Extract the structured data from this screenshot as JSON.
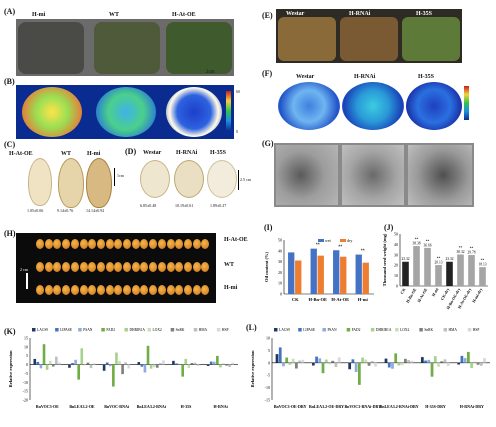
{
  "panels": {
    "A": {
      "label": "(A)",
      "titles": [
        "H-mi",
        "WT",
        "H-At-OE"
      ],
      "scale": "2cm"
    },
    "B": {
      "label": "(B)",
      "titles": [
        "H-mi",
        "WT",
        "H-At-OE"
      ],
      "colorbar_max": "60",
      "colorbar_min": "0"
    },
    "C": {
      "label": "(C)",
      "titles": [
        "H-At-OE",
        "WT",
        "H-mi"
      ],
      "values": [
        "1.05±0.06",
        "9.14±0.76",
        "14.14±0.92"
      ],
      "scale": "1cm"
    },
    "D": {
      "label": "(D)",
      "titles": [
        "Westar",
        "H-RNAi",
        "H-35S"
      ],
      "values": [
        "6.85±0.48",
        "10.19±0.61",
        "1.89±0.27"
      ],
      "scale": "2.5 cm"
    },
    "E": {
      "label": "(E)",
      "titles": [
        "Westar",
        "H-RNAi",
        "H-35S"
      ]
    },
    "F": {
      "label": "(F)",
      "titles": [
        "Westar",
        "H-RNAi",
        "H-35S"
      ]
    },
    "G": {
      "label": "(G)"
    },
    "H": {
      "label": "(H)",
      "rows": [
        "H-At-OE",
        "WT",
        "H-mi"
      ],
      "scale": "2 cm"
    },
    "I": {
      "label": "(I)"
    },
    "J": {
      "label": "(J)"
    },
    "K": {
      "label": "(K)"
    },
    "L": {
      "label": "(L)"
    }
  },
  "chart_data": [
    {
      "id": "I",
      "type": "bar",
      "ylabel": "Oil content (%)",
      "categories": [
        "CK",
        "H-Bn-OE",
        "H-At-OE",
        "H-mi"
      ],
      "series": [
        {
          "name": "wet",
          "color": "#4472c4",
          "values": [
            38.5,
            42.0,
            40.5,
            36.5
          ]
        },
        {
          "name": "dry",
          "color": "#ed7d31",
          "values": [
            31.0,
            35.5,
            34.5,
            29.0
          ]
        }
      ],
      "ylim": [
        0,
        50
      ],
      "yticks": [
        "0",
        "10",
        "20",
        "30",
        "40",
        "50"
      ],
      "annotations": [
        "",
        "**",
        "**",
        "**"
      ]
    },
    {
      "id": "J",
      "type": "bar",
      "ylabel": "Thousand seed weight (mg)",
      "categories": [
        "CK",
        "H-Bn-OE",
        "H-At-OE",
        "H-mi",
        "CK-dry",
        "H-Bn-OE-dry",
        "H-At-OE-dry",
        "H-mi-dry"
      ],
      "values": [
        23.32,
        38.38,
        36.66,
        20.13,
        23.32,
        30.32,
        29.78,
        18.13
      ],
      "value_labels": [
        "23.32",
        "38.38",
        "36.66",
        "20.13",
        "23.32",
        "30.32",
        "29.78",
        "18.13"
      ],
      "colors": [
        "#222222",
        "#a5a5a5",
        "#a5a5a5",
        "#a5a5a5",
        "#222222",
        "#a5a5a5",
        "#a5a5a5",
        "#a5a5a5"
      ],
      "annotations": [
        "",
        "**",
        "**",
        "**",
        "",
        "**",
        "**",
        "**"
      ],
      "ylim": [
        0,
        50
      ],
      "yticks": [
        "0",
        "10",
        "20",
        "30",
        "40",
        "50"
      ]
    },
    {
      "id": "K",
      "type": "bar",
      "ylabel": "Relative expression",
      "legend": [
        "LACS9",
        "LIPASE",
        "PSAN",
        "FAD2",
        "DHRIB1A",
        "LOX2",
        "SnRK",
        "HMA",
        "HSP"
      ],
      "colors": [
        "#203864",
        "#4472c4",
        "#8faadc",
        "#70ad47",
        "#a9d18e",
        "#c5e0b4",
        "#7f7f7f",
        "#bfbfbf",
        "#d9d9d9"
      ],
      "groups": [
        "BnVOC3-OE",
        "BnLEA3.2-OE",
        "BnVOC-RNAi",
        "BnLEA3.2-RNAi",
        "H-35S",
        "H-RNAi"
      ],
      "ylim": [
        -20,
        15
      ],
      "yticks": [
        "15",
        "10",
        "5",
        "0",
        "-5",
        "-10",
        "-15",
        "-20"
      ],
      "values": [
        [
          3.2,
          1.5,
          -2.1,
          11.5,
          -3.0,
          2.2,
          -1.1,
          4.5,
          1.2
        ],
        [
          -1.8,
          0.9,
          2.7,
          -8.5,
          9.2,
          -0.4,
          1.1,
          -2.0,
          0.7
        ],
        [
          -3.5,
          1.2,
          -0.9,
          -12.4,
          6.8,
          2.1,
          -5.4,
          1.3,
          -2.2
        ],
        [
          1.4,
          -1.2,
          -4.5,
          10.6,
          -2.3,
          -1.5,
          -1.8,
          0.8,
          2.4
        ],
        [
          2.1,
          0.6,
          0.4,
          -6.8,
          3.2,
          -1.9,
          0.9,
          1.1,
          -0.7
        ],
        [
          -0.8,
          1.7,
          1.6,
          4.9,
          -1.6,
          0.7,
          -0.6,
          -1.4,
          1.1
        ]
      ]
    },
    {
      "id": "L",
      "type": "bar",
      "ylabel": "Relative expression",
      "legend": [
        "LACS9",
        "LIPASE",
        "PSAN",
        "FAD2",
        "DHRIB1A",
        "LOX2",
        "SnRK",
        "HMA",
        "HSP"
      ],
      "colors": [
        "#203864",
        "#4472c4",
        "#8faadc",
        "#70ad47",
        "#a9d18e",
        "#c5e0b4",
        "#7f7f7f",
        "#bfbfbf",
        "#d9d9d9"
      ],
      "groups": [
        "BnVOC3-OE-DRY",
        "BnLEA3.2-OE-DRY",
        "BnVOC3-RNAi-DRY",
        "BnLEA3.2-RNAi-DRY",
        "H-35S-DRY",
        "H-RNAi-DRY"
      ],
      "ylim": [
        -15,
        10
      ],
      "yticks": [
        "10",
        "5",
        "0",
        "-5",
        "-10",
        "-15"
      ],
      "values": [
        [
          3.5,
          6.2,
          -1.4,
          2.1,
          -0.8,
          1.6,
          -2.3,
          0.9,
          1.2
        ],
        [
          -1.1,
          2.5,
          1.8,
          -4.2,
          1.3,
          -0.6,
          0.8,
          -1.7,
          2.2
        ],
        [
          -2.6,
          1.4,
          -3.7,
          -8.9,
          2.1,
          1.3,
          -1.2,
          0.7,
          -1.5
        ],
        [
          1.7,
          -1.9,
          -2.4,
          3.8,
          -1.1,
          -0.9,
          1.6,
          1.1,
          0.8
        ],
        [
          2.3,
          0.9,
          1.2,
          -5.6,
          2.7,
          -1.6,
          0.6,
          1.4,
          -1.3
        ],
        [
          -0.7,
          2.8,
          1.9,
          4.4,
          -2.1,
          0.5,
          -0.8,
          -1.2,
          1.9
        ]
      ]
    }
  ]
}
